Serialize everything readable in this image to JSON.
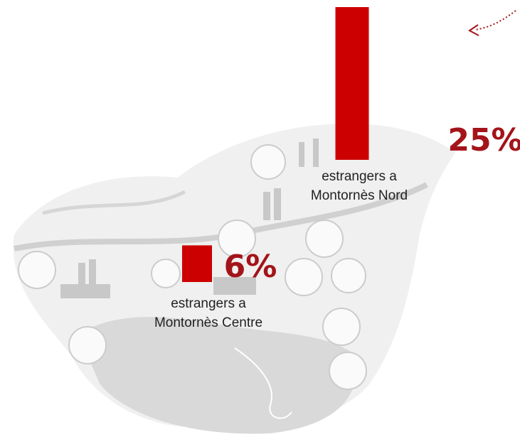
{
  "chart_data": {
    "type": "bar",
    "categories": [
      [
        "estrangers a",
        "Montornès Centre"
      ],
      [
        "estrangers a",
        "Montornès Nord"
      ]
    ],
    "values": [
      6,
      25
    ],
    "value_labels": [
      "6%",
      "25%"
    ],
    "color": "#cc0000",
    "label_color": "#a3141a"
  }
}
